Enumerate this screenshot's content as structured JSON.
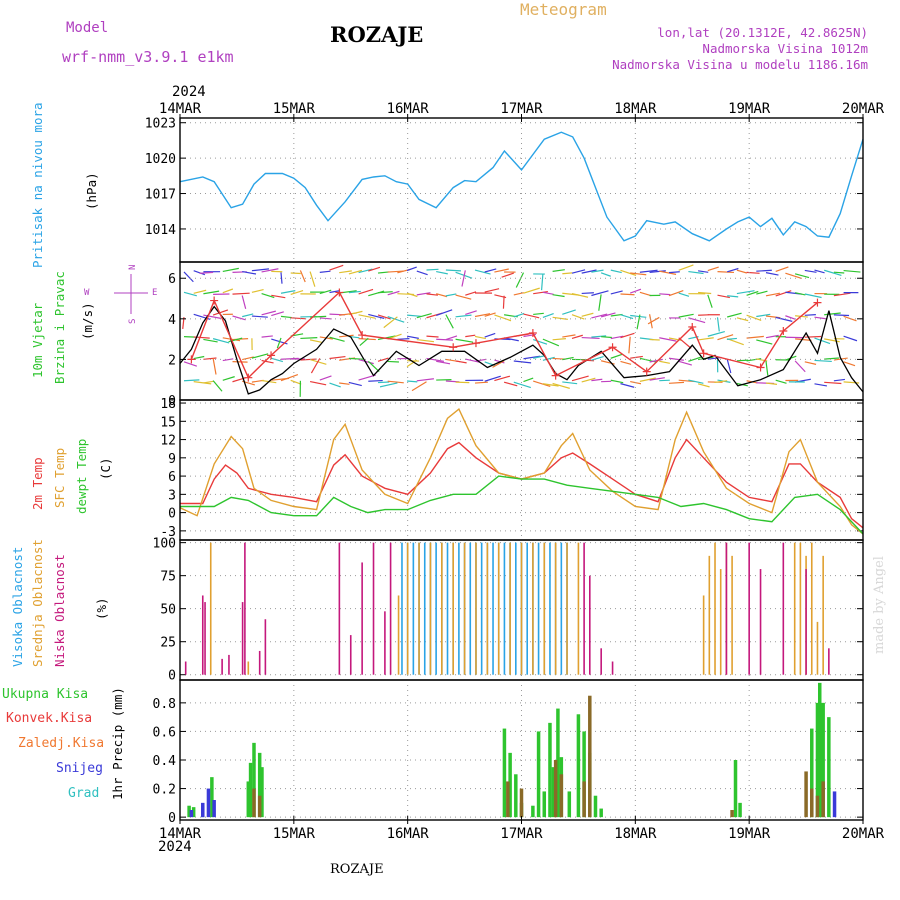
{
  "header": {
    "title": "ROZAJE",
    "meteogram_label": "Meteogram",
    "model_label": "Model",
    "model_name": "wrf-nmm_v3.9.1 e1km",
    "location_line": "lon,lat (20.1312E, 42.8625N)",
    "elevation_line": "Nadmorska Visina 1012m",
    "model_elevation_line": "Nadmorska Visina u modelu 1186.16m",
    "year_top": "2024",
    "year_bottom": "2024",
    "footer_title": "ROZAJE",
    "watermark": "made by Angel"
  },
  "colors": {
    "pressure": "#2aa3e6",
    "temp2m": "#e83a3a",
    "sfc_temp": "#e0a030",
    "dewpt": "#2ec42e",
    "high_cloud": "#2aa3e6",
    "mid_cloud": "#e0a030",
    "low_cloud": "#c4187c",
    "total_precip": "#2ec42e",
    "conv_precip": "#e83a3a",
    "frozen_precip": "#f07830",
    "snow": "#3a3ad8",
    "hail": "#30c0c0",
    "model": "#b040c0",
    "meteogram": "#e0b060"
  },
  "chart_data": [
    {
      "type": "line",
      "panel": "pressure",
      "ylabel_lines": [
        "Pritisak na nivou mora",
        "(hPa)"
      ],
      "categories": [
        "14MAR",
        "15MAR",
        "16MAR",
        "17MAR",
        "18MAR",
        "19MAR",
        "20MAR"
      ],
      "ylim": [
        1011.2,
        1023.4
      ],
      "yticks": [
        "1014",
        "1017",
        "1020",
        "1023"
      ],
      "grid": true,
      "series": [
        {
          "name": "Pritisak",
          "x": [
            0,
            0.2,
            0.3,
            0.45,
            0.55,
            0.65,
            0.75,
            0.9,
            1.0,
            1.1,
            1.2,
            1.3,
            1.45,
            1.6,
            1.7,
            1.8,
            1.9,
            2.0,
            2.1,
            2.25,
            2.4,
            2.5,
            2.6,
            2.75,
            2.85,
            3.0,
            3.2,
            3.35,
            3.45,
            3.55,
            3.65,
            3.75,
            3.9,
            4.0,
            4.1,
            4.25,
            4.35,
            4.5,
            4.65,
            4.8,
            4.9,
            5.0,
            5.1,
            5.2,
            5.3,
            5.4,
            5.5,
            5.6,
            5.7,
            5.8,
            5.9,
            6.0
          ],
          "values": [
            1018.0,
            1018.4,
            1018.0,
            1015.8,
            1016.1,
            1017.8,
            1018.7,
            1018.7,
            1018.3,
            1017.5,
            1016.0,
            1014.7,
            1016.3,
            1018.2,
            1018.4,
            1018.5,
            1018.0,
            1017.8,
            1016.5,
            1015.8,
            1017.5,
            1018.1,
            1018.0,
            1019.2,
            1020.6,
            1019.0,
            1021.6,
            1022.2,
            1021.8,
            1020.0,
            1017.5,
            1015.0,
            1013.0,
            1013.4,
            1014.7,
            1014.4,
            1014.6,
            1013.6,
            1013.0,
            1014.0,
            1014.6,
            1015.0,
            1014.2,
            1014.9,
            1013.5,
            1014.6,
            1014.2,
            1013.4,
            1013.3,
            1015.3,
            1018.5,
            1021.6
          ]
        }
      ]
    },
    {
      "type": "line",
      "panel": "wind",
      "ylabel_lines": [
        "10m Vjetar",
        "Brzina i Pravac",
        "(m/s)"
      ],
      "compass": {
        "north": "N",
        "south": "S",
        "east": "E",
        "west": "W"
      },
      "categories": [
        "14MAR",
        "15MAR",
        "16MAR",
        "17MAR",
        "18MAR",
        "19MAR",
        "20MAR"
      ],
      "ylim": [
        0,
        6.8
      ],
      "yticks": [
        "0",
        "2",
        "4",
        "6"
      ],
      "grid": true,
      "series": [
        {
          "name": "mean",
          "x": [
            0,
            0.1,
            0.2,
            0.3,
            0.4,
            0.5,
            0.6,
            0.7,
            0.8,
            0.9,
            1.0,
            1.2,
            1.35,
            1.5,
            1.7,
            1.9,
            2.1,
            2.3,
            2.5,
            2.7,
            2.9,
            3.1,
            3.2,
            3.3,
            3.4,
            3.5,
            3.7,
            3.9,
            4.1,
            4.3,
            4.5,
            4.6,
            4.7,
            4.9,
            5.1,
            5.3,
            5.5,
            5.6,
            5.7,
            5.8,
            5.9,
            6.0
          ],
          "values": [
            1.8,
            2.5,
            3.8,
            4.6,
            3.9,
            2.0,
            0.3,
            0.5,
            1.0,
            1.3,
            1.8,
            2.5,
            3.5,
            3.1,
            1.2,
            2.4,
            1.7,
            2.4,
            2.4,
            1.6,
            2.1,
            2.7,
            2.2,
            1.3,
            1.0,
            1.7,
            2.4,
            1.1,
            1.2,
            1.4,
            2.7,
            2.0,
            2.2,
            0.7,
            1.0,
            1.5,
            3.3,
            2.3,
            4.4,
            2.1,
            1.1,
            0.4
          ]
        },
        {
          "name": "gust",
          "x": [
            0.1,
            0.3,
            0.6,
            0.8,
            1.4,
            1.6,
            2.4,
            2.6,
            3.1,
            3.3,
            3.8,
            4.1,
            4.5,
            4.6,
            5.1,
            5.3,
            5.6
          ],
          "values": [
            2.0,
            4.9,
            1.1,
            2.2,
            5.3,
            3.2,
            2.6,
            2.8,
            3.3,
            1.2,
            2.6,
            1.4,
            3.6,
            2.3,
            1.6,
            3.4,
            4.8
          ]
        }
      ]
    },
    {
      "type": "line",
      "panel": "temperature",
      "ylabel_lines": [
        "2m Temp",
        "SFC Temp",
        "dewpt Temp",
        "(C)"
      ],
      "categories": [
        "14MAR",
        "15MAR",
        "16MAR",
        "17MAR",
        "18MAR",
        "19MAR",
        "20MAR"
      ],
      "ylim": [
        -4.5,
        18.5
      ],
      "yticks": [
        "-3",
        "0",
        "3",
        "6",
        "9",
        "12",
        "15",
        "18"
      ],
      "grid": true,
      "series": [
        {
          "name": "2m Temp",
          "x": [
            0,
            0.2,
            0.3,
            0.4,
            0.5,
            0.6,
            0.8,
            1.0,
            1.2,
            1.35,
            1.45,
            1.6,
            1.8,
            2.0,
            2.2,
            2.35,
            2.45,
            2.6,
            2.8,
            3.0,
            3.2,
            3.35,
            3.45,
            3.6,
            3.8,
            4.0,
            4.2,
            4.35,
            4.45,
            4.6,
            4.8,
            5.0,
            5.2,
            5.35,
            5.45,
            5.6,
            5.8,
            5.9,
            6.0
          ],
          "values": [
            1.5,
            1.5,
            5.5,
            7.8,
            6.5,
            4.0,
            3.0,
            2.5,
            1.8,
            7.8,
            9.5,
            6.0,
            4.0,
            3.0,
            6.5,
            10.5,
            11.5,
            9.0,
            6.5,
            5.5,
            6.5,
            9.0,
            9.8,
            8.0,
            5.5,
            3.0,
            1.8,
            9.0,
            12.0,
            9.0,
            5.0,
            2.5,
            1.8,
            8.0,
            8.0,
            5.0,
            2.5,
            -1.0,
            -2.5
          ]
        },
        {
          "name": "SFC Temp",
          "x": [
            0,
            0.15,
            0.3,
            0.45,
            0.55,
            0.65,
            0.8,
            1.0,
            1.2,
            1.35,
            1.45,
            1.6,
            1.8,
            2.0,
            2.2,
            2.35,
            2.45,
            2.6,
            2.8,
            3.0,
            3.2,
            3.35,
            3.45,
            3.6,
            3.8,
            4.0,
            4.2,
            4.35,
            4.45,
            4.6,
            4.8,
            5.0,
            5.2,
            5.35,
            5.45,
            5.6,
            5.8,
            5.9,
            6.0
          ],
          "values": [
            0.8,
            -0.5,
            8.0,
            12.5,
            10.5,
            4.0,
            2.0,
            1.0,
            0.5,
            12.0,
            14.5,
            7.0,
            3.0,
            1.5,
            9.0,
            15.5,
            17.0,
            11.0,
            6.5,
            5.5,
            6.5,
            11.0,
            13.0,
            7.0,
            3.5,
            1.0,
            0.5,
            12.0,
            16.5,
            10.0,
            4.0,
            1.5,
            0.0,
            10.0,
            12.0,
            5.0,
            1.0,
            -2.0,
            -3.5
          ]
        },
        {
          "name": "dewpt Temp",
          "x": [
            0,
            0.2,
            0.3,
            0.45,
            0.6,
            0.8,
            1.0,
            1.2,
            1.35,
            1.5,
            1.65,
            1.8,
            2.0,
            2.2,
            2.4,
            2.6,
            2.8,
            3.0,
            3.2,
            3.4,
            3.6,
            3.8,
            4.0,
            4.2,
            4.4,
            4.6,
            4.8,
            5.0,
            5.2,
            5.4,
            5.6,
            5.8,
            6.0
          ],
          "values": [
            1.0,
            1.0,
            1.0,
            2.5,
            2.0,
            0.0,
            -0.5,
            -0.5,
            2.5,
            1.0,
            0.0,
            0.5,
            0.5,
            2.0,
            3.0,
            3.0,
            6.0,
            5.5,
            5.5,
            4.5,
            4.0,
            3.5,
            3.0,
            2.5,
            1.0,
            1.5,
            0.5,
            -1.0,
            -1.5,
            2.5,
            3.0,
            0.5,
            -3.5
          ]
        }
      ]
    },
    {
      "type": "bar",
      "panel": "cloud",
      "ylabel_lines": [
        "Visoka Oblacnost",
        "Srednja Oblacnost",
        "Niska Oblacnost",
        "(%)"
      ],
      "categories": [
        "14MAR",
        "15MAR",
        "16MAR",
        "17MAR",
        "18MAR",
        "19MAR",
        "20MAR"
      ],
      "ylim": [
        -4,
        102
      ],
      "yticks": [
        "0",
        "25",
        "50",
        "75",
        "100"
      ],
      "grid": true,
      "series": [
        {
          "name": "Visoka Oblacnost",
          "x": [
            1.95,
            2.0,
            2.05,
            2.1,
            2.15,
            2.2,
            2.25,
            2.3,
            2.35,
            2.4,
            2.45,
            2.5,
            2.55,
            2.6,
            2.65,
            2.7,
            2.75,
            2.8,
            2.85,
            2.9,
            2.95,
            3.0,
            3.05,
            3.1,
            3.15,
            3.2,
            3.25,
            3.3,
            3.35,
            3.4
          ],
          "values": [
            100,
            100,
            100,
            100,
            100,
            100,
            100,
            100,
            100,
            100,
            100,
            100,
            100,
            100,
            100,
            100,
            100,
            100,
            100,
            100,
            100,
            100,
            100,
            100,
            100,
            100,
            100,
            100,
            100,
            100
          ]
        },
        {
          "name": "Srednja Oblacnost",
          "x": [
            0.27,
            0.6,
            1.92,
            2.0,
            2.1,
            2.2,
            2.3,
            2.4,
            2.5,
            2.6,
            2.7,
            2.8,
            2.9,
            3.0,
            3.1,
            3.2,
            3.3,
            3.4,
            3.5,
            4.6,
            4.65,
            4.7,
            4.75,
            4.8,
            4.85,
            5.4,
            5.45,
            5.5,
            5.55,
            5.6,
            5.65
          ],
          "values": [
            100,
            10,
            60,
            100,
            100,
            100,
            100,
            100,
            100,
            100,
            100,
            100,
            100,
            100,
            100,
            100,
            100,
            100,
            100,
            60,
            90,
            100,
            80,
            100,
            90,
            100,
            100,
            90,
            100,
            40,
            90
          ]
        },
        {
          "name": "Niska Oblacnost",
          "x": [
            0.05,
            0.2,
            0.22,
            0.37,
            0.43,
            0.55,
            0.57,
            0.7,
            0.75,
            1.4,
            1.5,
            1.6,
            1.7,
            1.8,
            1.85,
            3.55,
            3.6,
            3.7,
            3.8,
            4.8,
            5.0,
            5.1,
            5.3,
            5.5,
            5.7
          ],
          "values": [
            10,
            60,
            55,
            12,
            15,
            55,
            100,
            18,
            42,
            100,
            30,
            85,
            100,
            48,
            100,
            100,
            75,
            20,
            10,
            100,
            100,
            80,
            100,
            80,
            20
          ]
        }
      ]
    },
    {
      "type": "bar",
      "panel": "precip",
      "ylabel_lines": [
        "1hr Precip (mm)"
      ],
      "legend": [
        "Ukupna Kisa",
        "Konvek.Kisa",
        "Zaledj.Kisa",
        "Snijeg",
        "Grad"
      ],
      "categories": [
        "14MAR",
        "15MAR",
        "16MAR",
        "17MAR",
        "18MAR",
        "19MAR",
        "20MAR"
      ],
      "ylim": [
        -0.02,
        0.96
      ],
      "yticks": [
        "0",
        "0.2",
        "0.4",
        "0.6",
        "0.8"
      ],
      "grid": true,
      "series": [
        {
          "name": "Ukupna Kisa",
          "x": [
            0.08,
            0.12,
            0.2,
            0.28,
            0.6,
            0.62,
            0.65,
            0.7,
            0.72,
            2.85,
            2.9,
            2.95,
            3.0,
            3.1,
            3.15,
            3.2,
            3.25,
            3.28,
            3.32,
            3.35,
            3.42,
            3.5,
            3.55,
            3.6,
            3.65,
            3.7,
            4.88,
            4.92,
            5.55,
            5.6,
            5.62,
            5.65,
            5.7
          ],
          "values": [
            0.08,
            0.07,
            0.08,
            0.28,
            0.25,
            0.38,
            0.52,
            0.45,
            0.35,
            0.62,
            0.45,
            0.3,
            0.1,
            0.08,
            0.6,
            0.18,
            0.66,
            0.35,
            0.76,
            0.42,
            0.18,
            0.72,
            0.6,
            0.45,
            0.15,
            0.06,
            0.4,
            0.1,
            0.62,
            0.8,
            0.94,
            0.8,
            0.7
          ]
        },
        {
          "name": "Konvek.Kisa",
          "x": [
            0.65,
            0.7,
            2.88,
            3.0,
            3.3,
            3.35,
            3.55,
            3.6,
            4.85,
            5.5,
            5.55,
            5.6,
            5.65
          ],
          "values": [
            0.2,
            0.15,
            0.25,
            0.2,
            0.4,
            0.3,
            0.25,
            0.85,
            0.05,
            0.32,
            0.2,
            0.15,
            0.25
          ]
        },
        {
          "name": "Snijeg",
          "x": [
            0.1,
            0.2,
            0.25,
            0.3,
            5.75
          ],
          "values": [
            0.05,
            0.1,
            0.2,
            0.12,
            0.18
          ]
        }
      ]
    }
  ]
}
